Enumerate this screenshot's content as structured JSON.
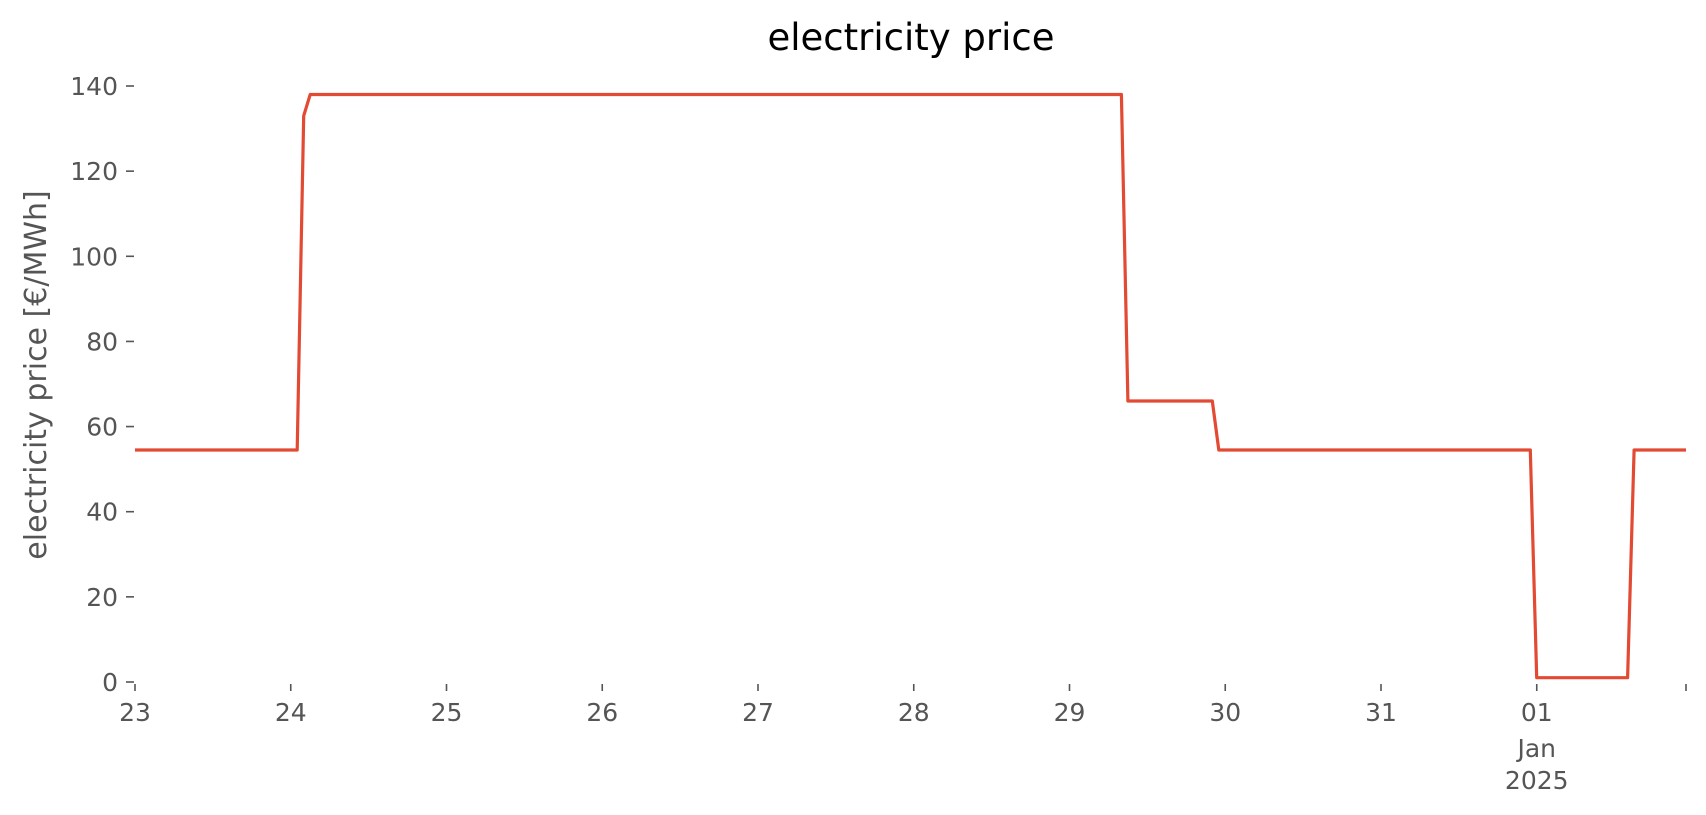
{
  "chart_data": {
    "type": "line",
    "title": "electricity price",
    "ylabel": "electricity price [€/MWh]",
    "xlabel": "",
    "ylim": [
      0,
      140
    ],
    "xlim": [
      "2024-12-23T00:00",
      "2025-01-01T23:00"
    ],
    "grid": false,
    "y_ticks": [
      0,
      20,
      40,
      60,
      80,
      100,
      120,
      140
    ],
    "x_ticks": [
      {
        "at": "2024-12-23T00:00",
        "label": "23"
      },
      {
        "at": "2024-12-24T00:00",
        "label": "24"
      },
      {
        "at": "2024-12-25T00:00",
        "label": "25"
      },
      {
        "at": "2024-12-26T00:00",
        "label": "26"
      },
      {
        "at": "2024-12-27T00:00",
        "label": "27"
      },
      {
        "at": "2024-12-28T00:00",
        "label": "28"
      },
      {
        "at": "2024-12-29T00:00",
        "label": "29"
      },
      {
        "at": "2024-12-30T00:00",
        "label": "30"
      },
      {
        "at": "2024-12-31T00:00",
        "label": "31"
      },
      {
        "at": "2025-01-01T00:00",
        "label": "01",
        "sublabel": "Jan",
        "sublabel2": "2025"
      }
    ],
    "series": [
      {
        "color": "#E24A33",
        "points": [
          {
            "x": "2024-12-23T00:00",
            "y": 54.5
          },
          {
            "x": "2024-12-24T01:00",
            "y": 54.5
          },
          {
            "x": "2024-12-24T02:00",
            "y": 133
          },
          {
            "x": "2024-12-24T03:00",
            "y": 138
          },
          {
            "x": "2024-12-29T08:00",
            "y": 138
          },
          {
            "x": "2024-12-29T09:00",
            "y": 66
          },
          {
            "x": "2024-12-29T22:00",
            "y": 66
          },
          {
            "x": "2024-12-29T23:00",
            "y": 54.5
          },
          {
            "x": "2024-12-31T23:00",
            "y": 54.5
          },
          {
            "x": "2025-01-01T00:00",
            "y": 1
          },
          {
            "x": "2025-01-01T14:00",
            "y": 1
          },
          {
            "x": "2025-01-01T15:00",
            "y": 54.5
          },
          {
            "x": "2025-01-01T23:00",
            "y": 54.5
          }
        ]
      }
    ]
  }
}
